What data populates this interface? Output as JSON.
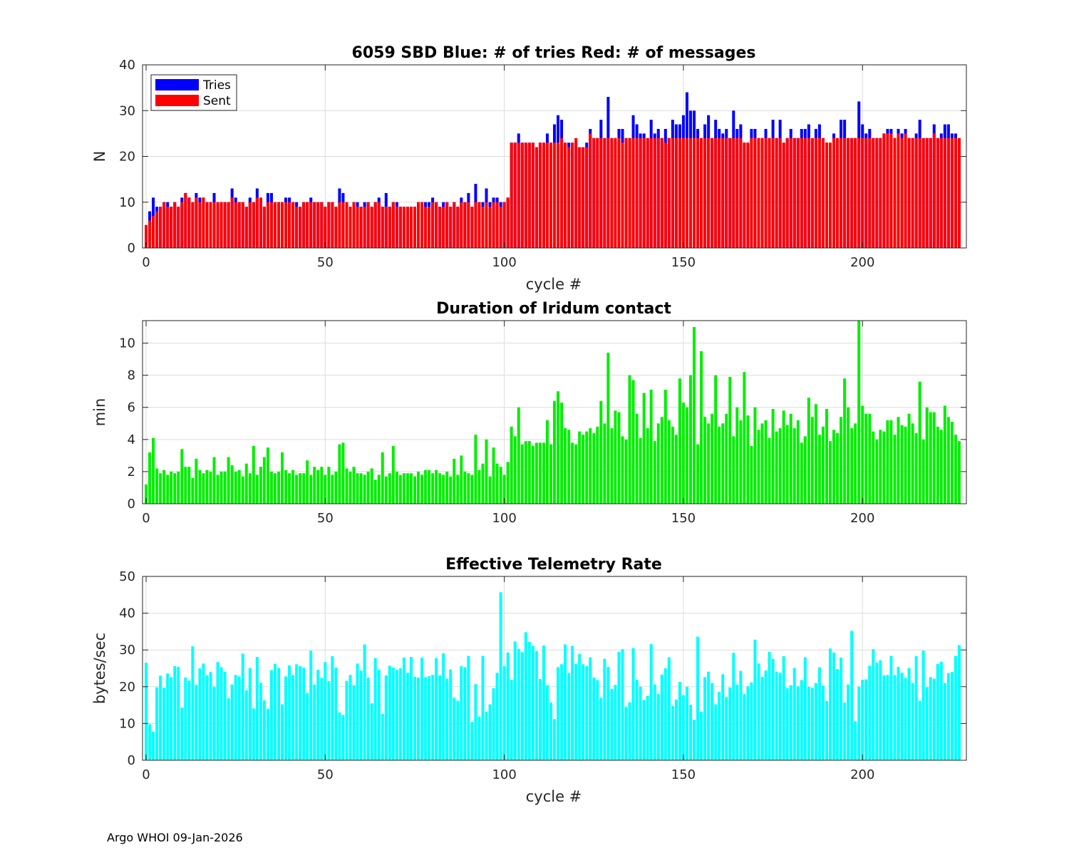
{
  "chart_data": [
    {
      "type": "bar",
      "title": "6059 SBD  Blue: # of tries   Red: # of messages",
      "xlabel": "cycle #",
      "ylabel": "N",
      "xlim": [
        -1,
        229
      ],
      "ylim": [
        0,
        40
      ],
      "xticks": [
        0,
        50,
        100,
        150,
        200
      ],
      "yticks": [
        0,
        10,
        20,
        30,
        40
      ],
      "grid": true,
      "legend_position": "top-left",
      "x_start": 0,
      "series": [
        {
          "name": "Tries",
          "color": "#0000ff",
          "values": [
            5,
            8,
            11,
            9,
            9,
            10,
            10,
            9,
            10,
            9,
            11,
            12,
            11,
            10,
            12,
            11,
            11,
            10,
            10,
            12,
            10,
            10,
            10,
            10,
            13,
            11,
            10,
            10,
            9,
            11,
            10,
            13,
            11,
            9,
            12,
            12,
            10,
            10,
            10,
            11,
            11,
            10,
            10,
            9,
            10,
            10,
            11,
            10,
            10,
            10,
            9,
            10,
            10,
            9,
            13,
            12,
            10,
            9,
            10,
            10,
            9,
            10,
            10,
            9,
            10,
            11,
            9,
            12,
            9,
            10,
            10,
            9,
            9,
            9,
            9,
            9,
            10,
            10,
            10,
            10,
            11,
            10,
            9,
            10,
            10,
            9,
            10,
            9,
            11,
            10,
            12,
            9,
            14,
            10,
            10,
            13,
            10,
            11,
            11,
            10,
            10,
            11,
            23,
            23,
            25,
            23,
            23,
            23,
            23,
            22,
            23,
            23,
            25,
            23,
            27,
            29,
            28,
            23,
            23,
            23,
            23,
            22,
            22,
            23,
            26,
            24,
            24,
            28,
            24,
            33,
            24,
            24,
            26,
            26,
            24,
            24,
            29,
            27,
            25,
            25,
            24,
            28,
            25,
            26,
            24,
            26,
            24,
            28,
            27,
            27,
            29,
            34,
            30,
            30,
            26,
            24,
            27,
            29,
            24,
            28,
            26,
            25,
            26,
            24,
            30,
            26,
            27,
            23,
            23,
            26,
            26,
            24,
            24,
            26,
            24,
            28,
            24,
            28,
            23,
            24,
            26,
            24,
            24,
            26,
            26,
            27,
            24,
            26,
            27,
            24,
            23,
            23,
            25,
            24,
            28,
            28,
            24,
            24,
            24,
            32,
            27,
            25,
            26,
            24,
            24,
            24,
            25,
            26,
            26,
            24,
            26,
            25,
            26,
            24,
            24,
            25,
            28,
            24,
            24,
            24,
            27,
            24,
            25,
            27,
            27,
            25,
            25,
            24
          ]
        },
        {
          "name": "Sent",
          "color": "#ff0000",
          "values": [
            5,
            6,
            7,
            8,
            9,
            10,
            9,
            9,
            10,
            9,
            10,
            12,
            11,
            10,
            11,
            10,
            11,
            10,
            10,
            10,
            10,
            10,
            10,
            10,
            11,
            10,
            10,
            10,
            9,
            10,
            10,
            11,
            11,
            9,
            10,
            10,
            10,
            10,
            10,
            10,
            10,
            10,
            9,
            9,
            10,
            10,
            10,
            10,
            10,
            10,
            9,
            10,
            10,
            9,
            10,
            10,
            10,
            9,
            10,
            9,
            9,
            9,
            10,
            9,
            10,
            10,
            9,
            9,
            9,
            10,
            9,
            9,
            9,
            9,
            9,
            9,
            10,
            10,
            9,
            9,
            10,
            10,
            9,
            9,
            10,
            9,
            10,
            9,
            10,
            10,
            10,
            9,
            10,
            10,
            9,
            10,
            9,
            10,
            10,
            9,
            10,
            11,
            23,
            23,
            23,
            23,
            23,
            23,
            23,
            22,
            23,
            23,
            23,
            23,
            23,
            23,
            24,
            23,
            22,
            23,
            24,
            22,
            22,
            22,
            25,
            24,
            24,
            24,
            24,
            24,
            24,
            24,
            24,
            23,
            24,
            24,
            24,
            24,
            24,
            24,
            24,
            24,
            24,
            24,
            24,
            23,
            24,
            24,
            24,
            24,
            24,
            24,
            24,
            24,
            24,
            24,
            24,
            24,
            24,
            24,
            24,
            24,
            24,
            24,
            24,
            24,
            24,
            23,
            23,
            24,
            24,
            24,
            24,
            24,
            24,
            24,
            24,
            24,
            23,
            24,
            24,
            24,
            24,
            24,
            24,
            24,
            24,
            24,
            24,
            24,
            23,
            23,
            24,
            24,
            24,
            24,
            24,
            24,
            24,
            24,
            24,
            24,
            24,
            24,
            24,
            24,
            25,
            25,
            25,
            24,
            25,
            24,
            25,
            24,
            24,
            24,
            24,
            24,
            24,
            24,
            25,
            24,
            24,
            24,
            24,
            24,
            24,
            24
          ]
        }
      ]
    },
    {
      "type": "bar",
      "title": "Duration of Iridum contact",
      "xlabel": "",
      "ylabel": "min",
      "xlim": [
        -1,
        229
      ],
      "ylim": [
        0,
        11.4
      ],
      "xticks": [
        0,
        50,
        100,
        150,
        200
      ],
      "yticks": [
        0,
        2,
        4,
        6,
        8,
        10
      ],
      "grid": true,
      "x_start": 0,
      "series": [
        {
          "name": "Duration",
          "color": "#00ee00",
          "values": [
            1.2,
            3.2,
            4.1,
            2.2,
            1.9,
            2.1,
            1.8,
            2.0,
            1.9,
            2.0,
            3.4,
            2.3,
            2.3,
            1.6,
            2.8,
            2.1,
            1.9,
            2.1,
            2.0,
            2.9,
            1.8,
            2.0,
            2.0,
            2.9,
            2.4,
            2.0,
            2.1,
            1.7,
            2.5,
            1.9,
            3.6,
            1.8,
            2.3,
            2.9,
            3.5,
            2.0,
            1.9,
            2.0,
            3.2,
            2.1,
            1.9,
            2.1,
            1.8,
            1.9,
            1.9,
            2.7,
            1.8,
            2.3,
            2.1,
            2.3,
            1.8,
            2.3,
            1.8,
            2.0,
            3.7,
            3.8,
            2.2,
            2.0,
            2.3,
            1.9,
            1.9,
            1.8,
            2.0,
            2.2,
            1.5,
            1.8,
            3.2,
            1.7,
            1.9,
            3.6,
            2.0,
            1.8,
            1.9,
            1.9,
            1.9,
            1.7,
            2.0,
            1.8,
            2.1,
            2.1,
            1.9,
            2.1,
            1.9,
            1.8,
            2.0,
            1.7,
            2.8,
            1.8,
            3.0,
            2.0,
            1.9,
            1.8,
            4.3,
            2.1,
            2.5,
            4.0,
            1.7,
            3.5,
            2.5,
            2.3,
            1.8,
            2.6,
            4.8,
            4.2,
            6.0,
            3.7,
            3.9,
            3.9,
            3.6,
            3.8,
            3.8,
            3.8,
            5.2,
            3.7,
            6.4,
            7.0,
            6.3,
            4.7,
            4.6,
            3.8,
            3.7,
            4.5,
            4.3,
            4.5,
            4.7,
            4.4,
            4.8,
            6.4,
            5.0,
            9.4,
            4.7,
            5.8,
            5.7,
            4.2,
            4.0,
            8.0,
            7.7,
            5.6,
            4.1,
            6.9,
            4.7,
            7.1,
            3.9,
            5.0,
            5.4,
            7.1,
            5.2,
            4.8,
            4.3,
            7.8,
            6.3,
            6.0,
            8.0,
            11.0,
            3.7,
            9.5,
            5.4,
            5.0,
            5.6,
            8.0,
            4.8,
            5.0,
            5.6,
            7.9,
            4.2,
            6.0,
            5.2,
            8.2,
            5.5,
            3.6,
            6.0,
            4.6,
            5.0,
            5.2,
            4.1,
            5.9,
            4.5,
            4.7,
            5.8,
            4.9,
            5.6,
            4.7,
            5.2,
            3.8,
            4.2,
            6.6,
            5.4,
            6.2,
            4.3,
            4.8,
            5.9,
            3.9,
            4.6,
            4.4,
            5.4,
            7.8,
            6.0,
            4.7,
            5.0,
            11.5,
            6.1,
            5.6,
            5.6,
            4.5,
            4.0,
            4.6,
            4.5,
            5.2,
            5.2,
            4.3,
            5.4,
            4.9,
            4.8,
            5.6,
            5.0,
            4.4,
            7.6,
            4.0,
            6.0,
            5.7,
            5.7,
            4.8,
            4.6,
            6.1,
            5.4,
            5.1,
            4.3,
            3.9
          ]
        }
      ]
    },
    {
      "type": "bar",
      "title": "Effective Telemetry Rate",
      "xlabel": "cycle #",
      "ylabel": "bytes/sec",
      "xlim": [
        -1,
        229
      ],
      "ylim": [
        0,
        50
      ],
      "xticks": [
        0,
        50,
        100,
        150,
        200
      ],
      "yticks": [
        0,
        10,
        20,
        30,
        40,
        50
      ],
      "grid": true,
      "x_start": 0,
      "series": [
        {
          "name": "Rate",
          "color": "#00ffff",
          "values": [
            26.5,
            9.8,
            7.8,
            19.8,
            23.0,
            19.7,
            23.6,
            22.6,
            25.6,
            25.4,
            14.3,
            22.5,
            21.7,
            31.0,
            20.5,
            25.0,
            26.3,
            23.1,
            24.0,
            20.0,
            26.7,
            25.3,
            24.1,
            16.9,
            20.6,
            23.2,
            22.8,
            29.0,
            19.0,
            25.1,
            14.1,
            28.1,
            21.1,
            16.3,
            14.0,
            24.5,
            26.2,
            25.1,
            15.2,
            22.8,
            25.8,
            23.2,
            26.1,
            25.6,
            25.2,
            18.3,
            29.8,
            20.6,
            24.6,
            22.4,
            26.7,
            21.5,
            28.3,
            25.2,
            13.0,
            12.3,
            21.6,
            23.2,
            20.4,
            26.3,
            24.4,
            31.5,
            22.5,
            15.5,
            27.8,
            24.6,
            12.6,
            23.1,
            25.7,
            25.2,
            24.6,
            25.0,
            27.9,
            23.8,
            28.1,
            22.7,
            22.5,
            27.9,
            22.6,
            22.9,
            23.2,
            27.8,
            23.1,
            29.1,
            22.2,
            24.7,
            17.0,
            16.2,
            25.6,
            25.3,
            28.4,
            10.4,
            20.7,
            11.9,
            28.4,
            13.2,
            15.2,
            19.6,
            23.8,
            45.7,
            25.6,
            29.3,
            21.9,
            32.3,
            30.3,
            29.4,
            34.8,
            32.2,
            31.1,
            29.7,
            22.1,
            31.2,
            20.4,
            15.7,
            11.2,
            25.3,
            26.1,
            31.5,
            23.7,
            31.1,
            26.2,
            28.9,
            26.1,
            25.6,
            28.0,
            22.5,
            21.8,
            17.0,
            27.6,
            25.4,
            19.4,
            20.5,
            29.5,
            30.2,
            14.6,
            15.8,
            30.5,
            21.9,
            20.0,
            16.4,
            17.5,
            31.6,
            20.6,
            18.0,
            23.3,
            25.0,
            28.0,
            14.8,
            16.5,
            21.3,
            17.7,
            20.0,
            15.1,
            11.0,
            33.6,
            13.2,
            22.6,
            24.1,
            21.0,
            15.2,
            18.6,
            23.4,
            17.2,
            19.8,
            29.2,
            20.6,
            24.3,
            18.0,
            20.1,
            21.2,
            32.8,
            26.3,
            22.7,
            24.4,
            29.5,
            27.6,
            24.1,
            23.8,
            28.3,
            19.6,
            20.4,
            25.1,
            20.1,
            21.8,
            28.0,
            20.0,
            19.7,
            21.0,
            25.3,
            20.3,
            16.1,
            30.4,
            29.3,
            24.8,
            27.9,
            15.7,
            20.6,
            35.2,
            10.6,
            20.0,
            21.9,
            22.0,
            25.7,
            30.2,
            26.6,
            27.2,
            23.1,
            23.2,
            28.4,
            23.2,
            25.4,
            23.8,
            22.4,
            25.1,
            21.0,
            28.3,
            16.2,
            29.8,
            19.9,
            22.6,
            22.2,
            26.2,
            26.8,
            21.0,
            23.7,
            24.0,
            28.4,
            31.3
          ]
        }
      ]
    }
  ],
  "legend": {
    "tries_label": "Tries",
    "sent_label": "Sent"
  },
  "footer": "Argo WHOI 09-Jan-2026"
}
